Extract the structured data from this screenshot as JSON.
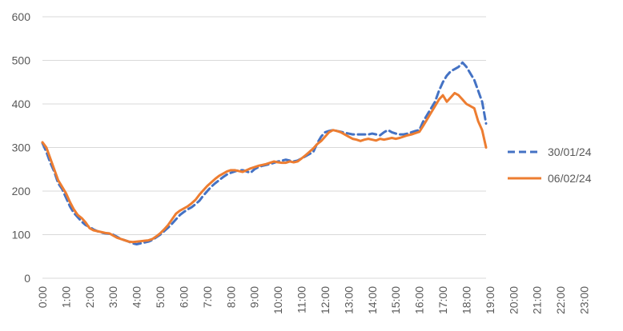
{
  "chart_data": {
    "type": "line",
    "title": "",
    "xlabel": "",
    "ylabel": "",
    "ylim": [
      0,
      600
    ],
    "y_ticks": [
      "0",
      "100",
      "200",
      "300",
      "400",
      "500",
      "600"
    ],
    "x_ticks": [
      "0:00",
      "1:00",
      "2:00",
      "3:00",
      "4:00",
      "5:00",
      "6:00",
      "7:00",
      "8:00",
      "9:00",
      "10:00",
      "11:00",
      "12:00",
      "13:00",
      "14:00",
      "15:00",
      "16:00",
      "17:00",
      "18:00",
      "19:00",
      "20:00",
      "21:00",
      "22:00",
      "23:00"
    ],
    "x_interval_minutes": 10,
    "grid": true,
    "legend_position": "right",
    "series": [
      {
        "name": "30/01/24",
        "color": "#4472c4",
        "style": "dashed",
        "values": [
          310,
          290,
          265,
          245,
          218,
          205,
          185,
          165,
          150,
          140,
          130,
          122,
          118,
          112,
          108,
          105,
          103,
          102,
          100,
          95,
          90,
          87,
          84,
          80,
          78,
          80,
          82,
          84,
          88,
          94,
          100,
          108,
          116,
          125,
          135,
          145,
          152,
          158,
          163,
          170,
          178,
          190,
          200,
          210,
          218,
          225,
          232,
          238,
          242,
          245,
          248,
          248,
          245,
          242,
          250,
          255,
          258,
          260,
          262,
          265,
          268,
          270,
          272,
          270,
          268,
          270,
          275,
          280,
          285,
          290,
          310,
          325,
          335,
          338,
          340,
          338,
          336,
          334,
          332,
          330,
          330,
          330,
          330,
          330,
          332,
          330,
          328,
          335,
          340,
          335,
          332,
          330,
          330,
          332,
          335,
          338,
          340,
          360,
          375,
          390,
          405,
          430,
          450,
          465,
          475,
          480,
          485,
          495,
          485,
          470,
          455,
          430,
          405,
          355
        ]
      },
      {
        "name": "06/02/24",
        "color": "#ed7d31",
        "style": "solid",
        "values": [
          312,
          300,
          275,
          250,
          225,
          210,
          195,
          175,
          158,
          145,
          138,
          128,
          115,
          110,
          108,
          106,
          104,
          103,
          98,
          93,
          90,
          87,
          84,
          83,
          84,
          85,
          86,
          87,
          90,
          96,
          103,
          112,
          122,
          135,
          148,
          155,
          160,
          165,
          172,
          180,
          192,
          202,
          212,
          220,
          228,
          235,
          240,
          245,
          248,
          248,
          246,
          244,
          248,
          252,
          255,
          258,
          260,
          262,
          265,
          268,
          266,
          265,
          265,
          268,
          266,
          268,
          275,
          282,
          290,
          298,
          308,
          315,
          325,
          335,
          340,
          338,
          335,
          330,
          325,
          320,
          318,
          315,
          318,
          320,
          318,
          316,
          320,
          318,
          320,
          322,
          320,
          322,
          325,
          328,
          330,
          333,
          336,
          350,
          365,
          380,
          395,
          410,
          420,
          405,
          415,
          425,
          420,
          410,
          400,
          395,
          390,
          360,
          340,
          300
        ]
      }
    ]
  }
}
